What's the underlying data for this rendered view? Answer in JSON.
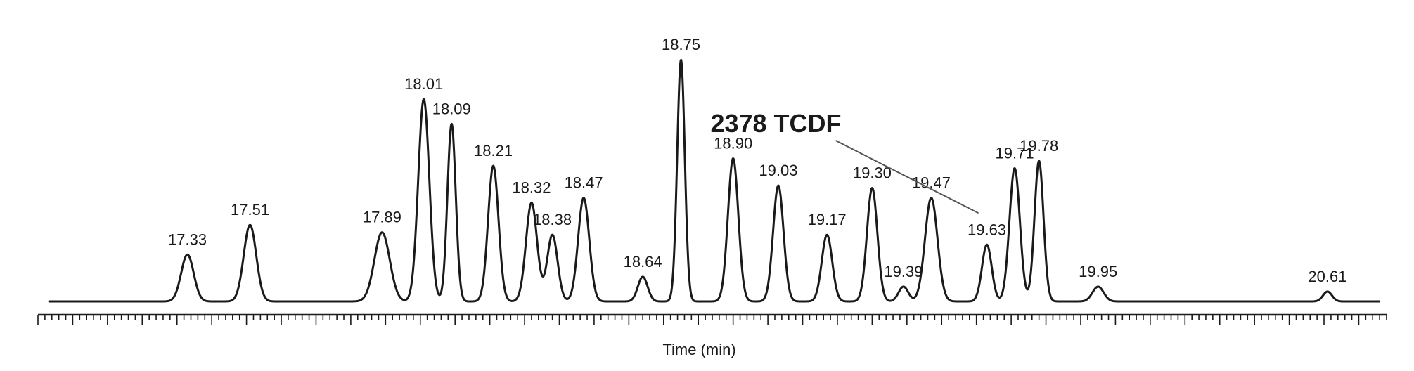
{
  "chart_data": {
    "type": "line",
    "title": "",
    "xlabel": "Time (min)",
    "ylabel": "",
    "xlim": [
      16.9,
      20.78
    ],
    "ylim": [
      0,
      100
    ],
    "grid": false,
    "legend": "none",
    "peaks": [
      {
        "time": 17.33,
        "height": 19,
        "width": 0.018,
        "label": "17.33"
      },
      {
        "time": 17.51,
        "height": 31,
        "width": 0.018,
        "label": "17.51"
      },
      {
        "time": 17.89,
        "height": 28,
        "width": 0.022,
        "label": "17.89"
      },
      {
        "time": 18.01,
        "height": 82,
        "width": 0.016,
        "label": "18.01"
      },
      {
        "time": 18.09,
        "height": 72,
        "width": 0.012,
        "label": "18.09"
      },
      {
        "time": 18.21,
        "height": 55,
        "width": 0.015,
        "label": "18.21"
      },
      {
        "time": 18.32,
        "height": 40,
        "width": 0.016,
        "label": "18.32"
      },
      {
        "time": 18.38,
        "height": 27,
        "width": 0.015,
        "label": "18.38"
      },
      {
        "time": 18.47,
        "height": 42,
        "width": 0.016,
        "label": "18.47"
      },
      {
        "time": 18.64,
        "height": 10,
        "width": 0.014,
        "label": "18.64"
      },
      {
        "time": 18.75,
        "height": 98,
        "width": 0.011,
        "label": "18.75"
      },
      {
        "time": 18.9,
        "height": 58,
        "width": 0.015,
        "label": "18.90"
      },
      {
        "time": 19.03,
        "height": 47,
        "width": 0.015,
        "label": "19.03"
      },
      {
        "time": 19.17,
        "height": 27,
        "width": 0.015,
        "label": "19.17"
      },
      {
        "time": 19.3,
        "height": 46,
        "width": 0.015,
        "label": "19.30"
      },
      {
        "time": 19.39,
        "height": 6,
        "width": 0.014,
        "label": "19.39"
      },
      {
        "time": 19.47,
        "height": 42,
        "width": 0.018,
        "label": "19.47"
      },
      {
        "time": 19.63,
        "height": 23,
        "width": 0.014,
        "label": "19.63"
      },
      {
        "time": 19.71,
        "height": 54,
        "width": 0.015,
        "label": "19.71"
      },
      {
        "time": 19.78,
        "height": 57,
        "width": 0.013,
        "label": "19.78"
      },
      {
        "time": 19.95,
        "height": 6,
        "width": 0.016,
        "label": "19.95"
      },
      {
        "time": 20.61,
        "height": 4,
        "width": 0.013,
        "label": "20.61"
      }
    ],
    "annotations": [
      {
        "text": "2378 TCDF",
        "points_to": 19.63
      }
    ]
  },
  "colors": {
    "trace": "#1a1a1a",
    "background": "#ffffff",
    "leader": "#555555"
  }
}
